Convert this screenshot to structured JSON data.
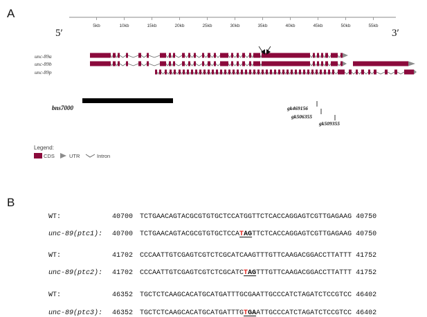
{
  "panels": {
    "a": "A",
    "b": "B"
  },
  "gene_map": {
    "ruler_ticks": [
      "5kb",
      "10kb",
      "15kb",
      "20kb",
      "25kb",
      "30kb",
      "35kb",
      "40kb",
      "45kb",
      "50kb",
      "55kb"
    ],
    "end5": "5′",
    "end3": "3′",
    "isoforms": [
      "unc-89a",
      "unc-89b",
      "unc-89p"
    ],
    "deletion": "bns7000",
    "alleles": [
      "gk469156",
      "gk506355",
      "gk509355"
    ],
    "legend_title": "Legend:",
    "legend_items": [
      "CDS",
      "UTR",
      "Intron"
    ],
    "colors": {
      "cds": "#8b0a3c",
      "utr": "#8c8c8c",
      "intron": "#666666",
      "deletion": "#000000"
    }
  },
  "sequences": [
    {
      "label": "WT:",
      "start": "40700",
      "seq": "TCTGAACAGTACGCGTGTGCTCCATGGTTCTCACCAGGAGTCGTTGAGAAG",
      "end": "40750"
    },
    {
      "label": "unc-89(ptc1):",
      "start": "40700",
      "pre": "TCTGAACAGTACGCGTGTGCTCCA",
      "mut": "T",
      "mut_rest": "AG",
      "post": "TTCTCACCAGGAGTCGTTGAGAAG",
      "end": "40750"
    },
    {
      "label": "WT:",
      "start": "41702",
      "seq": "CCCAATTGTCGAGTCGTCTCGCATCAAGTTTGTTCAAGACGGACCTTATTT",
      "end": "41752"
    },
    {
      "label": "unc-89(ptc2):",
      "start": "41702",
      "pre": "CCCAATTGTCGAGTCGTCTCGCATC",
      "mut": "T",
      "mut_rest": "AG",
      "post": "TTTGTTCAAGACGGACCTTATTT",
      "end": "41752"
    },
    {
      "label": "WT:",
      "start": "46352",
      "seq": "TGCTCTCAAGCACATGCATGATTTGCGAATTGCCCATCTAGATCTCCGTCC",
      "end": "46402"
    },
    {
      "label": "unc-89(ptc3):",
      "start": "46352",
      "pre": "TGCTCTCAAGCACATGCATGATTTG",
      "mut": "T",
      "mut_rest": "GA",
      "post": "ATTGCCCATCTAGATCTCCGTCC",
      "end": "46402"
    }
  ]
}
